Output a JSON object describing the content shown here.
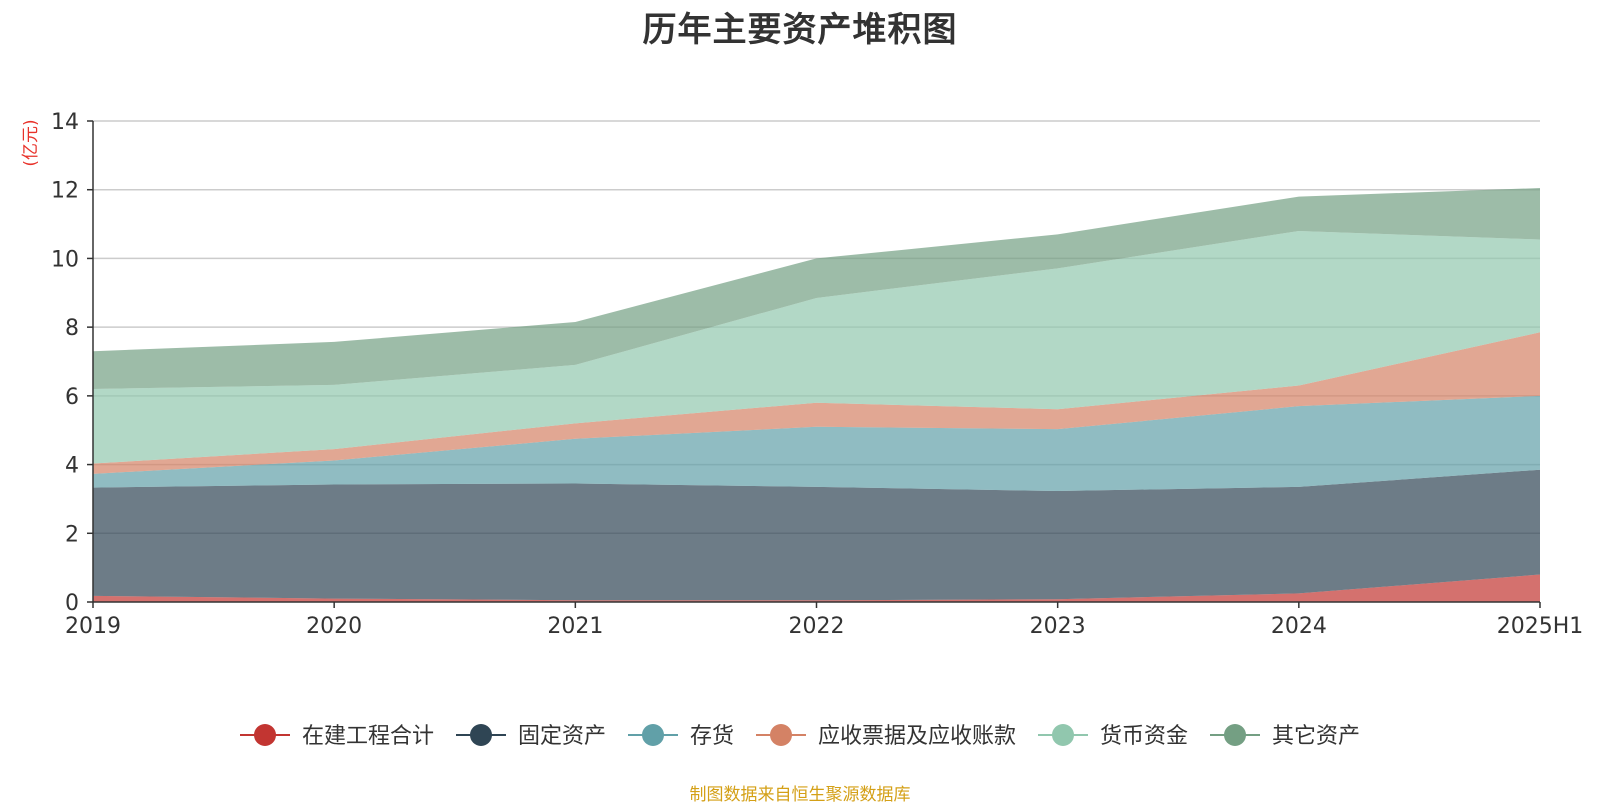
{
  "chart_data": {
    "type": "area",
    "stacked": true,
    "title": "历年主要资产堆积图",
    "y_unit_label": "(亿元)",
    "ylim": [
      0,
      14
    ],
    "y_ticks": [
      "0",
      "2",
      "4",
      "6",
      "8",
      "10",
      "12",
      "14"
    ],
    "categories": [
      "2019",
      "2020",
      "2021",
      "2022",
      "2023",
      "2024",
      "2025H1"
    ],
    "grid": true,
    "legend_position": "bottom",
    "series": [
      {
        "name": "在建工程合计",
        "color": "#c23531",
        "values": [
          0.18,
          0.1,
          0.05,
          0.05,
          0.08,
          0.25,
          0.8
        ]
      },
      {
        "name": "固定资产",
        "color": "#2f4554",
        "values": [
          3.15,
          3.32,
          3.4,
          3.3,
          3.15,
          3.1,
          3.05
        ]
      },
      {
        "name": "存货",
        "color": "#61a0a8",
        "values": [
          0.4,
          0.7,
          1.3,
          1.75,
          1.8,
          2.35,
          2.15
        ]
      },
      {
        "name": "应收票据及应收账款",
        "color": "#d48265",
        "values": [
          0.3,
          0.33,
          0.45,
          0.7,
          0.58,
          0.6,
          1.85
        ]
      },
      {
        "name": "货币资金",
        "color": "#91c7ae",
        "values": [
          2.17,
          1.87,
          1.7,
          3.05,
          4.1,
          4.5,
          2.7
        ]
      },
      {
        "name": "其它资产",
        "color": "#749f83",
        "values": [
          1.1,
          1.25,
          1.25,
          1.15,
          0.99,
          1.0,
          1.5
        ]
      }
    ]
  },
  "footer": {
    "source": "制图数据来自恒生聚源数据库"
  }
}
